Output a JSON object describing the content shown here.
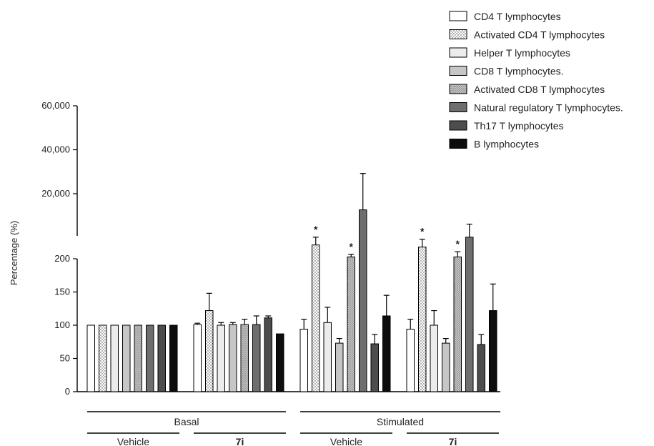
{
  "chart_data": {
    "type": "bar",
    "ylabel": "Percentage (%)",
    "y_ticks_lower": [
      "0",
      "50",
      "100",
      "150",
      "200"
    ],
    "y_ticks_upper": [
      "20,000",
      "40,000",
      "60,000"
    ],
    "axis_break": true,
    "legend_position": "top-right",
    "groups": {
      "top": [
        "Basal",
        "Stimulated"
      ],
      "bottom": [
        "Vehicle",
        "7i",
        "Vehicle",
        "7i"
      ]
    },
    "categories": [
      "Basal / Vehicle",
      "Basal / 7i",
      "Stimulated / Vehicle",
      "Stimulated / 7i"
    ],
    "series": [
      {
        "name": "CD4 T lymphocytes",
        "pattern": "white",
        "values": [
          100,
          101,
          94,
          94
        ],
        "errors": [
          0,
          2,
          15,
          15
        ]
      },
      {
        "name": "Activated CD4 T lymphocytes",
        "pattern": "dots-white",
        "values": [
          100,
          122,
          6500,
          5700
        ],
        "errors": [
          0,
          26,
          3000,
          3000
        ]
      },
      {
        "name": "Helper T lymphocytes",
        "pattern": "lightgray",
        "values": [
          100,
          100,
          104,
          100
        ],
        "errors": [
          0,
          4,
          23,
          22
        ]
      },
      {
        "name": "CD8 T lymphocytes.",
        "pattern": "gray",
        "values": [
          100,
          101,
          73,
          73
        ],
        "errors": [
          0,
          3,
          7,
          7
        ]
      },
      {
        "name": "Activated CD8 T lymphocytes",
        "pattern": "dots-gray",
        "values": [
          100,
          101,
          1900,
          1900
        ],
        "errors": [
          0,
          8,
          1000,
          2000
        ]
      },
      {
        "name": "Natural regulatory T lymphocytes.",
        "pattern": "darkgray",
        "values": [
          100,
          101,
          20000,
          9500
        ],
        "errors": [
          0,
          13,
          14000,
          5000
        ]
      },
      {
        "name": "Th17 T lymphocytes",
        "pattern": "darker",
        "values": [
          100,
          111,
          72,
          71
        ],
        "errors": [
          0,
          3,
          14,
          15
        ]
      },
      {
        "name": "B lymphocytes",
        "pattern": "black",
        "values": [
          100,
          87,
          114,
          122
        ],
        "errors": [
          0,
          0,
          31,
          40
        ]
      }
    ],
    "significance_marker": "*",
    "significant": [
      [
        2,
        1
      ],
      [
        2,
        4
      ],
      [
        3,
        1
      ],
      [
        3,
        4
      ]
    ]
  }
}
